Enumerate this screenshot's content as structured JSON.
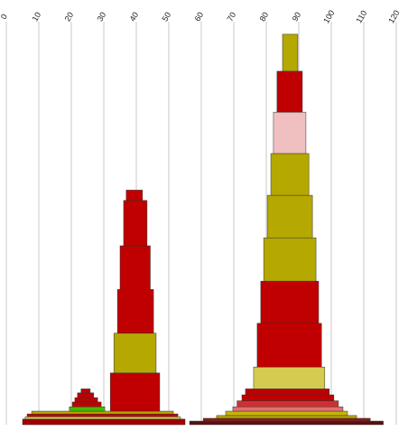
{
  "chart_data": {
    "type": "layers",
    "xlim": [
      0,
      120
    ],
    "xticks": [
      0,
      10,
      20,
      30,
      40,
      50,
      60,
      70,
      80,
      90,
      100,
      110,
      120
    ],
    "ylim": [
      0,
      100
    ],
    "grid": true,
    "layers": [
      {
        "color": "#a00000",
        "x": [
          5,
          55
        ],
        "y": [
          0,
          1.4
        ]
      },
      {
        "color": "#d4cc50",
        "x": [
          5.8,
          53.6
        ],
        "y": [
          1.4,
          2
        ]
      },
      {
        "color": "#c00000",
        "x": [
          6.4,
          52.8
        ],
        "y": [
          2,
          2.7
        ]
      },
      {
        "color": "#b5a800",
        "x": [
          7.8,
          51.4
        ],
        "y": [
          2.7,
          3.4
        ]
      },
      {
        "color": "#44bb00",
        "x": [
          19.4,
          30.3
        ],
        "y": [
          3.4,
          4.5
        ]
      },
      {
        "color": "#c00000",
        "x": [
          20.3,
          29.2
        ],
        "y": [
          4.5,
          5.7
        ]
      },
      {
        "color": "#c00000",
        "x": [
          21.1,
          28.1
        ],
        "y": [
          5.7,
          6.8
        ]
      },
      {
        "color": "#c00000",
        "x": [
          21.9,
          26.9
        ],
        "y": [
          6.8,
          8
        ]
      },
      {
        "color": "#c00000",
        "x": [
          23,
          25.8
        ],
        "y": [
          8,
          9
        ]
      },
      {
        "color": "#c00000",
        "x": [
          32,
          47.2
        ],
        "y": [
          3.4,
          13
        ]
      },
      {
        "color": "#b5a800",
        "x": [
          33.1,
          46.1
        ],
        "y": [
          13,
          23
        ]
      },
      {
        "color": "#c00000",
        "x": [
          34.2,
          45.3
        ],
        "y": [
          23,
          34
        ]
      },
      {
        "color": "#c00000",
        "x": [
          35,
          44.3
        ],
        "y": [
          34,
          45
        ]
      },
      {
        "color": "#c00000",
        "x": [
          36.1,
          43.3
        ],
        "y": [
          45,
          56.4
        ]
      },
      {
        "color": "#c00000",
        "x": [
          36.9,
          41.9
        ],
        "y": [
          56.4,
          59
        ]
      },
      {
        "color": "#5a1010",
        "x": [
          56.4,
          116
        ],
        "y": [
          0,
          0.9
        ]
      },
      {
        "color": "#8b1a1a",
        "x": [
          60.6,
          112
        ],
        "y": [
          0.9,
          1.6
        ]
      },
      {
        "color": "#b5a800",
        "x": [
          64.7,
          107.8
        ],
        "y": [
          1.6,
          2.3
        ]
      },
      {
        "color": "#c8b400",
        "x": [
          67.5,
          105
        ],
        "y": [
          2.3,
          3.4
        ]
      },
      {
        "color": "#e07070",
        "x": [
          69.7,
          103.6
        ],
        "y": [
          3.4,
          4.5
        ]
      },
      {
        "color": "#d03030",
        "x": [
          71,
          102.2
        ],
        "y": [
          4.5,
          6
        ]
      },
      {
        "color": "#c00000",
        "x": [
          72.5,
          100.8
        ],
        "y": [
          6,
          7.5
        ]
      },
      {
        "color": "#c00000",
        "x": [
          73.6,
          99.4
        ],
        "y": [
          7.5,
          9
        ]
      },
      {
        "color": "#d4cc50",
        "x": [
          76.1,
          98
        ],
        "y": [
          9,
          14.5
        ]
      },
      {
        "color": "#c00000",
        "x": [
          77.2,
          97
        ],
        "y": [
          14.5,
          25.5
        ]
      },
      {
        "color": "#c00000",
        "x": [
          78.3,
          96.1
        ],
        "y": [
          25.5,
          36.1
        ]
      },
      {
        "color": "#b5a800",
        "x": [
          79.2,
          95.3
        ],
        "y": [
          36.1,
          47
        ]
      },
      {
        "color": "#b5a800",
        "x": [
          80.3,
          94.2
        ],
        "y": [
          47,
          57.7
        ]
      },
      {
        "color": "#b5a800",
        "x": [
          81.4,
          93.1
        ],
        "y": [
          57.7,
          68.2
        ]
      },
      {
        "color": "#f0c0c0",
        "x": [
          82.2,
          92.2
        ],
        "y": [
          68.2,
          78.6
        ]
      },
      {
        "color": "#c00000",
        "x": [
          83.3,
          91.1
        ],
        "y": [
          78.6,
          88.9
        ]
      },
      {
        "color": "#b5a800",
        "x": [
          85,
          89.7
        ],
        "y": [
          88.9,
          98.2
        ]
      }
    ]
  }
}
